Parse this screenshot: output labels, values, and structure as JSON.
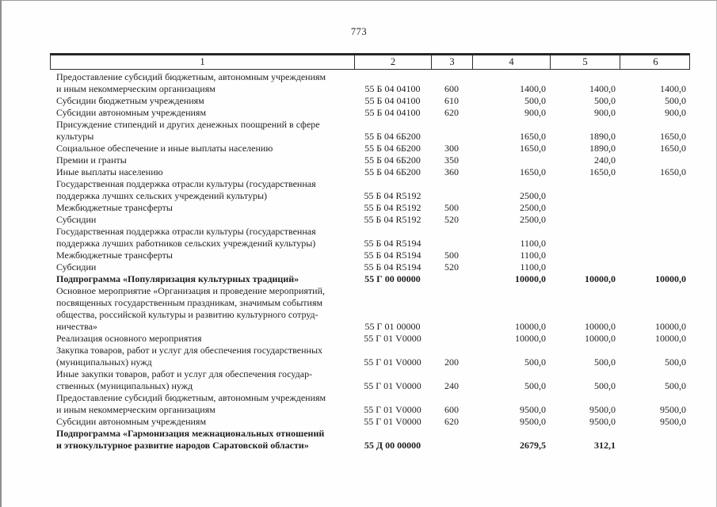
{
  "page": {
    "number": "773"
  },
  "table": {
    "header": [
      "1",
      "2",
      "3",
      "4",
      "5",
      "6"
    ],
    "rows": [
      {
        "label": "Предоставление субсидий бюджетным, автономным учреждениям\nи иным некоммерческим организациям",
        "code": "55 Б 04 04100",
        "type": "600",
        "c4": "1400,0",
        "c5": "1400,0",
        "c6": "1400,0",
        "bold": false
      },
      {
        "label": "Субсидии бюджетным учреждениям",
        "code": "55 Б 04 04100",
        "type": "610",
        "c4": "500,0",
        "c5": "500,0",
        "c6": "500,0",
        "bold": false
      },
      {
        "label": "Субсидии автономным учреждениям",
        "code": "55 Б 04 04100",
        "type": "620",
        "c4": "900,0",
        "c5": "900,0",
        "c6": "900,0",
        "bold": false
      },
      {
        "label": "Присуждение стипендий и других денежных поощрений в сфере\nкультуры",
        "code": "55 Б 04 6Б200",
        "type": "",
        "c4": "1650,0",
        "c5": "1890,0",
        "c6": "1650,0",
        "bold": false
      },
      {
        "label": "Социальное обеспечение и иные выплаты населению",
        "code": "55 Б 04 6Б200",
        "type": "300",
        "c4": "1650,0",
        "c5": "1890,0",
        "c6": "1650,0",
        "bold": false
      },
      {
        "label": "Премии и гранты",
        "code": "55 Б 04 6Б200",
        "type": "350",
        "c4": "",
        "c5": "240,0",
        "c6": "",
        "bold": false
      },
      {
        "label": "Иные выплаты населению",
        "code": "55 Б 04 6Б200",
        "type": "360",
        "c4": "1650,0",
        "c5": "1650,0",
        "c6": "1650,0",
        "bold": false
      },
      {
        "label": "Государственная поддержка отрасли культуры (государственная\nподдержка лучших сельских учреждений культуры)",
        "code": "55 Б 04 R5192",
        "type": "",
        "c4": "2500,0",
        "c5": "",
        "c6": "",
        "bold": false
      },
      {
        "label": "Межбюджетные трансферты",
        "code": "55 Б 04 R5192",
        "type": "500",
        "c4": "2500,0",
        "c5": "",
        "c6": "",
        "bold": false
      },
      {
        "label": "Субсидии",
        "code": "55 Б 04 R5192",
        "type": "520",
        "c4": "2500,0",
        "c5": "",
        "c6": "",
        "bold": false
      },
      {
        "label": "Государственная поддержка отрасли культуры (государственная\nподдержка лучших работников сельских учреждений культуры)",
        "code": "55 Б 04 R5194",
        "type": "",
        "c4": "1100,0",
        "c5": "",
        "c6": "",
        "bold": false
      },
      {
        "label": "Межбюджетные трансферты",
        "code": "55 Б 04 R5194",
        "type": "500",
        "c4": "1100,0",
        "c5": "",
        "c6": "",
        "bold": false
      },
      {
        "label": "Субсидии",
        "code": "55 Б 04 R5194",
        "type": "520",
        "c4": "1100,0",
        "c5": "",
        "c6": "",
        "bold": false
      },
      {
        "label": "Подпрограмма «Популяризация культурных традиций»",
        "code": "55 Г 00 00000",
        "type": "",
        "c4": "10000,0",
        "c5": "10000,0",
        "c6": "10000,0",
        "bold": true
      },
      {
        "label": "Основное мероприятие «Организация и проведение мероприятий,\nпосвященных государственным праздникам, значимым событиям\nобщества, российской культуры и развитию культурного сотруд-\nничества»",
        "code": "55 Г 01 00000",
        "type": "",
        "c4": "10000,0",
        "c5": "10000,0",
        "c6": "10000,0",
        "bold": false
      },
      {
        "label": "Реализация основного мероприятия",
        "code": "55 Г 01 V0000",
        "type": "",
        "c4": "10000,0",
        "c5": "10000,0",
        "c6": "10000,0",
        "bold": false
      },
      {
        "label": "Закупка товаров, работ и услуг для обеспечения государственных\n(муниципальных) нужд",
        "code": "55 Г 01 V0000",
        "type": "200",
        "c4": "500,0",
        "c5": "500,0",
        "c6": "500,0",
        "bold": false
      },
      {
        "label": "Иные закупки товаров, работ и услуг для обеспечения государ-\nственных (муниципальных) нужд",
        "code": "55 Г 01 V0000",
        "type": "240",
        "c4": "500,0",
        "c5": "500,0",
        "c6": "500,0",
        "bold": false
      },
      {
        "label": "Предоставление субсидий бюджетным, автономным учреждениям\nи иным некоммерческим организациям",
        "code": "55 Г 01 V0000",
        "type": "600",
        "c4": "9500,0",
        "c5": "9500,0",
        "c6": "9500,0",
        "bold": false
      },
      {
        "label": "Субсидии автономным учреждениям",
        "code": "55 Г 01 V0000",
        "type": "620",
        "c4": "9500,0",
        "c5": "9500,0",
        "c6": "9500,0",
        "bold": false
      },
      {
        "label": "Подпрограмма «Гармонизация межнациональных отношений\nи этнокультурное развитие народов Саратовской области»",
        "code": "55 Д 00 00000",
        "type": "",
        "c4": "2679,5",
        "c5": "312,1",
        "c6": "",
        "bold": true
      }
    ]
  }
}
